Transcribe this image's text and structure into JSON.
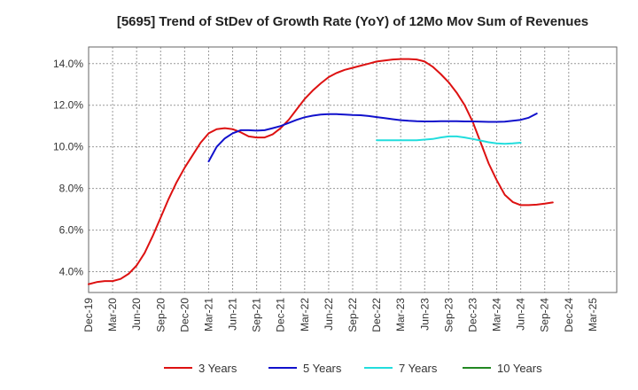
{
  "chart_data": {
    "type": "line",
    "title": "[5695]  Trend of StDev of Growth Rate (YoY) of 12Mo Mov Sum of Revenues",
    "xlabel": "",
    "ylabel": "",
    "ylim": [
      3.0,
      14.8
    ],
    "yticks": [
      4.0,
      6.0,
      8.0,
      10.0,
      12.0,
      14.0
    ],
    "ytick_labels": [
      "4.0%",
      "6.0%",
      "8.0%",
      "10.0%",
      "12.0%",
      "14.0%"
    ],
    "xlim": [
      0,
      66
    ],
    "x_tick_labels": [
      "Dec-19",
      "Mar-20",
      "Jun-20",
      "Sep-20",
      "Dec-20",
      "Mar-21",
      "Jun-21",
      "Sep-21",
      "Dec-21",
      "Mar-22",
      "Jun-22",
      "Sep-22",
      "Dec-22",
      "Mar-23",
      "Jun-23",
      "Sep-23",
      "Dec-23",
      "Mar-24",
      "Jun-24",
      "Sep-24",
      "Dec-24",
      "Mar-25"
    ],
    "grid": true,
    "legend_position": "bottom",
    "series": [
      {
        "name": "3 Years",
        "color": "#dd1111",
        "points": [
          [
            0,
            3.4
          ],
          [
            1,
            3.5
          ],
          [
            2,
            3.55
          ],
          [
            3,
            3.55
          ],
          [
            4,
            3.65
          ],
          [
            5,
            3.9
          ],
          [
            6,
            4.3
          ],
          [
            7,
            4.9
          ],
          [
            8,
            5.7
          ],
          [
            9,
            6.6
          ],
          [
            10,
            7.5
          ],
          [
            11,
            8.3
          ],
          [
            12,
            9.0
          ],
          [
            13,
            9.6
          ],
          [
            14,
            10.2
          ],
          [
            15,
            10.65
          ],
          [
            16,
            10.85
          ],
          [
            17,
            10.9
          ],
          [
            18,
            10.85
          ],
          [
            19,
            10.7
          ],
          [
            20,
            10.5
          ],
          [
            21,
            10.45
          ],
          [
            22,
            10.45
          ],
          [
            23,
            10.6
          ],
          [
            24,
            10.9
          ],
          [
            25,
            11.3
          ],
          [
            26,
            11.8
          ],
          [
            27,
            12.3
          ],
          [
            28,
            12.7
          ],
          [
            29,
            13.05
          ],
          [
            30,
            13.35
          ],
          [
            31,
            13.55
          ],
          [
            32,
            13.7
          ],
          [
            33,
            13.8
          ],
          [
            34,
            13.9
          ],
          [
            35,
            14.0
          ],
          [
            36,
            14.1
          ],
          [
            37,
            14.15
          ],
          [
            38,
            14.2
          ],
          [
            39,
            14.22
          ],
          [
            40,
            14.22
          ],
          [
            41,
            14.2
          ],
          [
            42,
            14.1
          ],
          [
            43,
            13.85
          ],
          [
            44,
            13.5
          ],
          [
            45,
            13.1
          ],
          [
            46,
            12.6
          ],
          [
            47,
            12.0
          ],
          [
            48,
            11.2
          ],
          [
            49,
            10.2
          ],
          [
            50,
            9.2
          ],
          [
            51,
            8.4
          ],
          [
            52,
            7.7
          ],
          [
            53,
            7.35
          ],
          [
            54,
            7.2
          ],
          [
            55,
            7.2
          ],
          [
            56,
            7.22
          ],
          [
            57,
            7.27
          ],
          [
            58,
            7.33
          ]
        ]
      },
      {
        "name": "5 Years",
        "color": "#1111cc",
        "points": [
          [
            15,
            9.3
          ],
          [
            16,
            10.0
          ],
          [
            17,
            10.4
          ],
          [
            18,
            10.65
          ],
          [
            19,
            10.8
          ],
          [
            20,
            10.8
          ],
          [
            21,
            10.78
          ],
          [
            22,
            10.8
          ],
          [
            23,
            10.9
          ],
          [
            24,
            11.0
          ],
          [
            25,
            11.15
          ],
          [
            26,
            11.3
          ],
          [
            27,
            11.42
          ],
          [
            28,
            11.5
          ],
          [
            29,
            11.55
          ],
          [
            30,
            11.57
          ],
          [
            31,
            11.57
          ],
          [
            32,
            11.55
          ],
          [
            33,
            11.53
          ],
          [
            34,
            11.52
          ],
          [
            35,
            11.48
          ],
          [
            36,
            11.43
          ],
          [
            37,
            11.38
          ],
          [
            38,
            11.33
          ],
          [
            39,
            11.28
          ],
          [
            40,
            11.25
          ],
          [
            41,
            11.23
          ],
          [
            42,
            11.22
          ],
          [
            43,
            11.22
          ],
          [
            44,
            11.23
          ],
          [
            45,
            11.23
          ],
          [
            46,
            11.23
          ],
          [
            47,
            11.22
          ],
          [
            48,
            11.22
          ],
          [
            49,
            11.21
          ],
          [
            50,
            11.2
          ],
          [
            51,
            11.2
          ],
          [
            52,
            11.21
          ],
          [
            53,
            11.25
          ],
          [
            54,
            11.3
          ],
          [
            55,
            11.4
          ],
          [
            56,
            11.6
          ]
        ]
      },
      {
        "name": "7 Years",
        "color": "#22dddd",
        "points": [
          [
            36,
            10.32
          ],
          [
            37,
            10.32
          ],
          [
            38,
            10.32
          ],
          [
            39,
            10.32
          ],
          [
            40,
            10.32
          ],
          [
            41,
            10.32
          ],
          [
            42,
            10.35
          ],
          [
            43,
            10.38
          ],
          [
            44,
            10.45
          ],
          [
            45,
            10.5
          ],
          [
            46,
            10.5
          ],
          [
            47,
            10.45
          ],
          [
            48,
            10.38
          ],
          [
            49,
            10.3
          ],
          [
            50,
            10.22
          ],
          [
            51,
            10.17
          ],
          [
            52,
            10.15
          ],
          [
            53,
            10.17
          ],
          [
            54,
            10.2
          ]
        ]
      },
      {
        "name": "10 Years",
        "color": "#228822",
        "points": []
      }
    ]
  }
}
